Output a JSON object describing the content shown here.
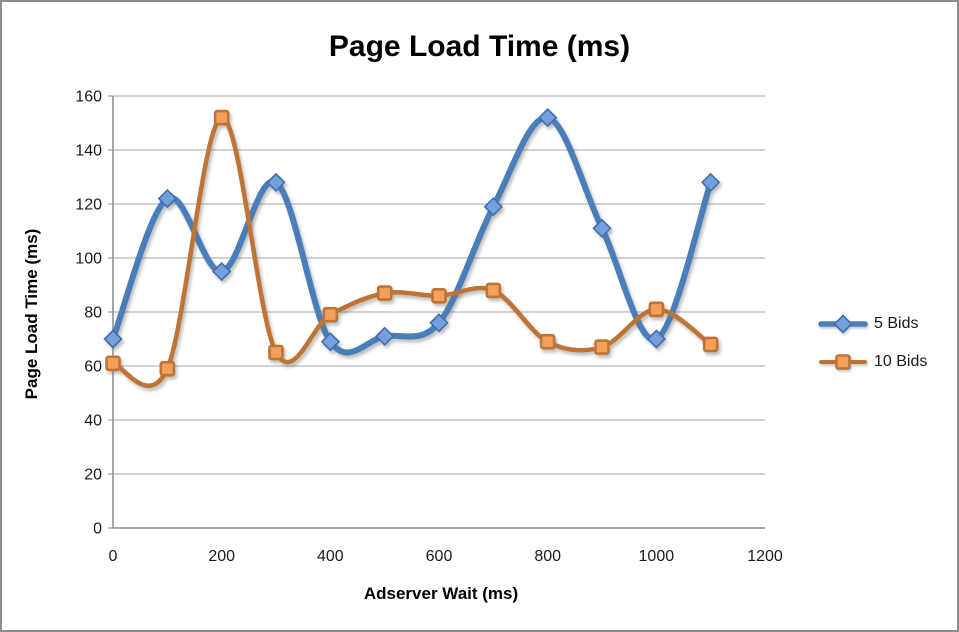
{
  "chart": {
    "title": "Page Load Time (ms)",
    "x_axis_title": "Adserver Wait (ms)",
    "y_axis_title": "Page Load Time (ms)"
  },
  "chart_data": {
    "type": "line",
    "smooth": true,
    "title": "Page Load Time (ms)",
    "xlabel": "Adserver Wait (ms)",
    "ylabel": "Page Load Time (ms)",
    "x": [
      0,
      100,
      200,
      300,
      400,
      500,
      600,
      700,
      800,
      900,
      1000,
      1100
    ],
    "series": [
      {
        "name": "5 Bids",
        "marker": "diamond",
        "line_color": "#4A7EBB",
        "marker_fill": "#74A1DC",
        "marker_stroke": "#3E6FAE",
        "values": [
          70,
          122,
          95,
          128,
          69,
          71,
          76,
          119,
          152,
          111,
          70,
          128
        ]
      },
      {
        "name": "10 Bids",
        "marker": "square",
        "line_color": "#BE7434",
        "marker_fill": "#F5A05A",
        "marker_stroke": "#BE7434",
        "values": [
          61,
          59,
          152,
          65,
          79,
          87,
          86,
          88,
          69,
          67,
          81,
          68
        ]
      }
    ],
    "xlim": [
      0,
      1200
    ],
    "ylim": [
      0,
      160
    ],
    "x_ticks": [
      0,
      200,
      400,
      600,
      800,
      1000,
      1200
    ],
    "y_ticks": [
      0,
      20,
      40,
      60,
      80,
      100,
      120,
      140,
      160
    ],
    "grid": "horizontal",
    "legend_position": "right"
  },
  "colors": {
    "background": "#FFFFFF",
    "frame_border": "#8C8C8C",
    "gridline": "#A6A6A6",
    "axis": "#898989",
    "text": "#1A1A1A"
  }
}
